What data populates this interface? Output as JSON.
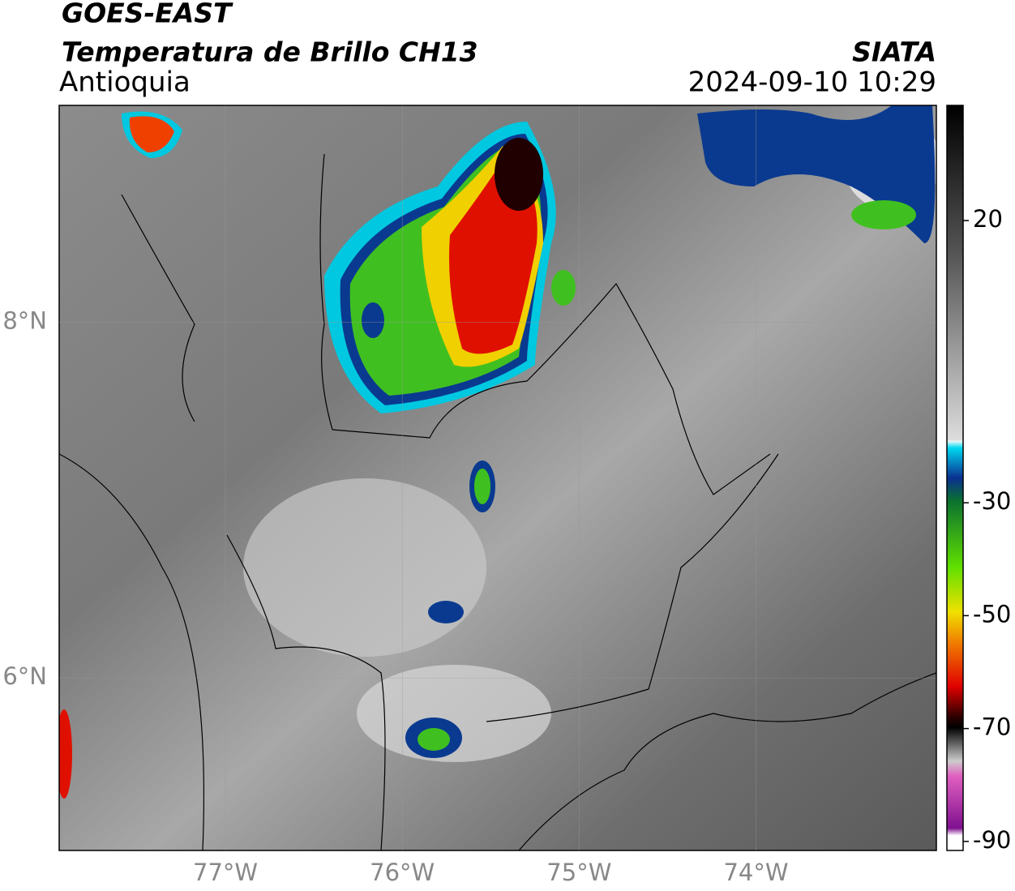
{
  "header": {
    "satellite": "GOES-EAST",
    "title": "Temperatura de Brillo CH13",
    "region": "Antioquia",
    "source": "SIATA",
    "datetime": "2024-09-10 10:29"
  },
  "map": {
    "xlim": [
      -77.94,
      -72.98
    ],
    "ylim": [
      5.03,
      9.22
    ],
    "xticks": [
      {
        "value": -77,
        "label": "77°W"
      },
      {
        "value": -76,
        "label": "76°W"
      },
      {
        "value": -75,
        "label": "75°W"
      },
      {
        "value": -74,
        "label": "74°W"
      }
    ],
    "yticks": [
      {
        "value": 6,
        "label": "6°N"
      },
      {
        "value": 8,
        "label": "8°N"
      }
    ]
  },
  "colorbar": {
    "lim": [
      -91.6,
      40.4
    ],
    "ticks": [
      20,
      -30,
      -50,
      -70,
      -90
    ]
  }
}
